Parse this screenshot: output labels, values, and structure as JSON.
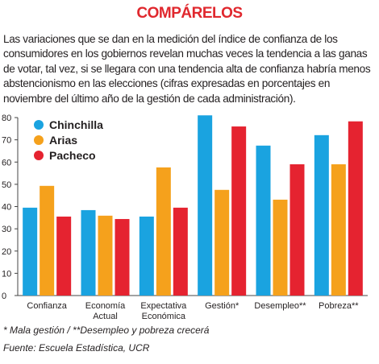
{
  "chart_data": {
    "type": "bar",
    "title": "COMPÁRELOS",
    "subtitle": "Las variaciones que se dan en la medición del índice de confianza de los consumidores en los gobiernos revelan muchas veces la tendencia a las ganas de votar, tal vez, si se llegara con una tendencia alta de confianza habría menos abstencionismo en las elecciones (cifras expresadas en porcentajes en noviembre del último año de la gestión de cada administración).",
    "categories": [
      "Confianza",
      "Economía Actual",
      "Expectativa Económica",
      "Gestión*",
      "Desempleo**",
      "Pobreza**"
    ],
    "series": [
      {
        "name": "Chinchilla",
        "color": "#1aa3e0",
        "values": [
          39.5,
          38.4,
          35.5,
          81,
          67.4,
          72.1
        ]
      },
      {
        "name": "Arias",
        "color": "#f5a11c",
        "values": [
          49.3,
          35.9,
          57.6,
          47.5,
          43.1,
          59
        ]
      },
      {
        "name": "Pacheco",
        "color": "#e52330",
        "values": [
          35.5,
          34.4,
          39.5,
          76,
          59,
          78.3
        ]
      }
    ],
    "ylim": [
      0,
      80
    ],
    "yticks": [
      0,
      10,
      20,
      30,
      40,
      50,
      60,
      70,
      80
    ],
    "legend": "top-left",
    "notes": [
      "* Mala gestión / **Desempleo y pobreza crecerá",
      "Fuente: Escuela Estadística, UCR"
    ]
  }
}
